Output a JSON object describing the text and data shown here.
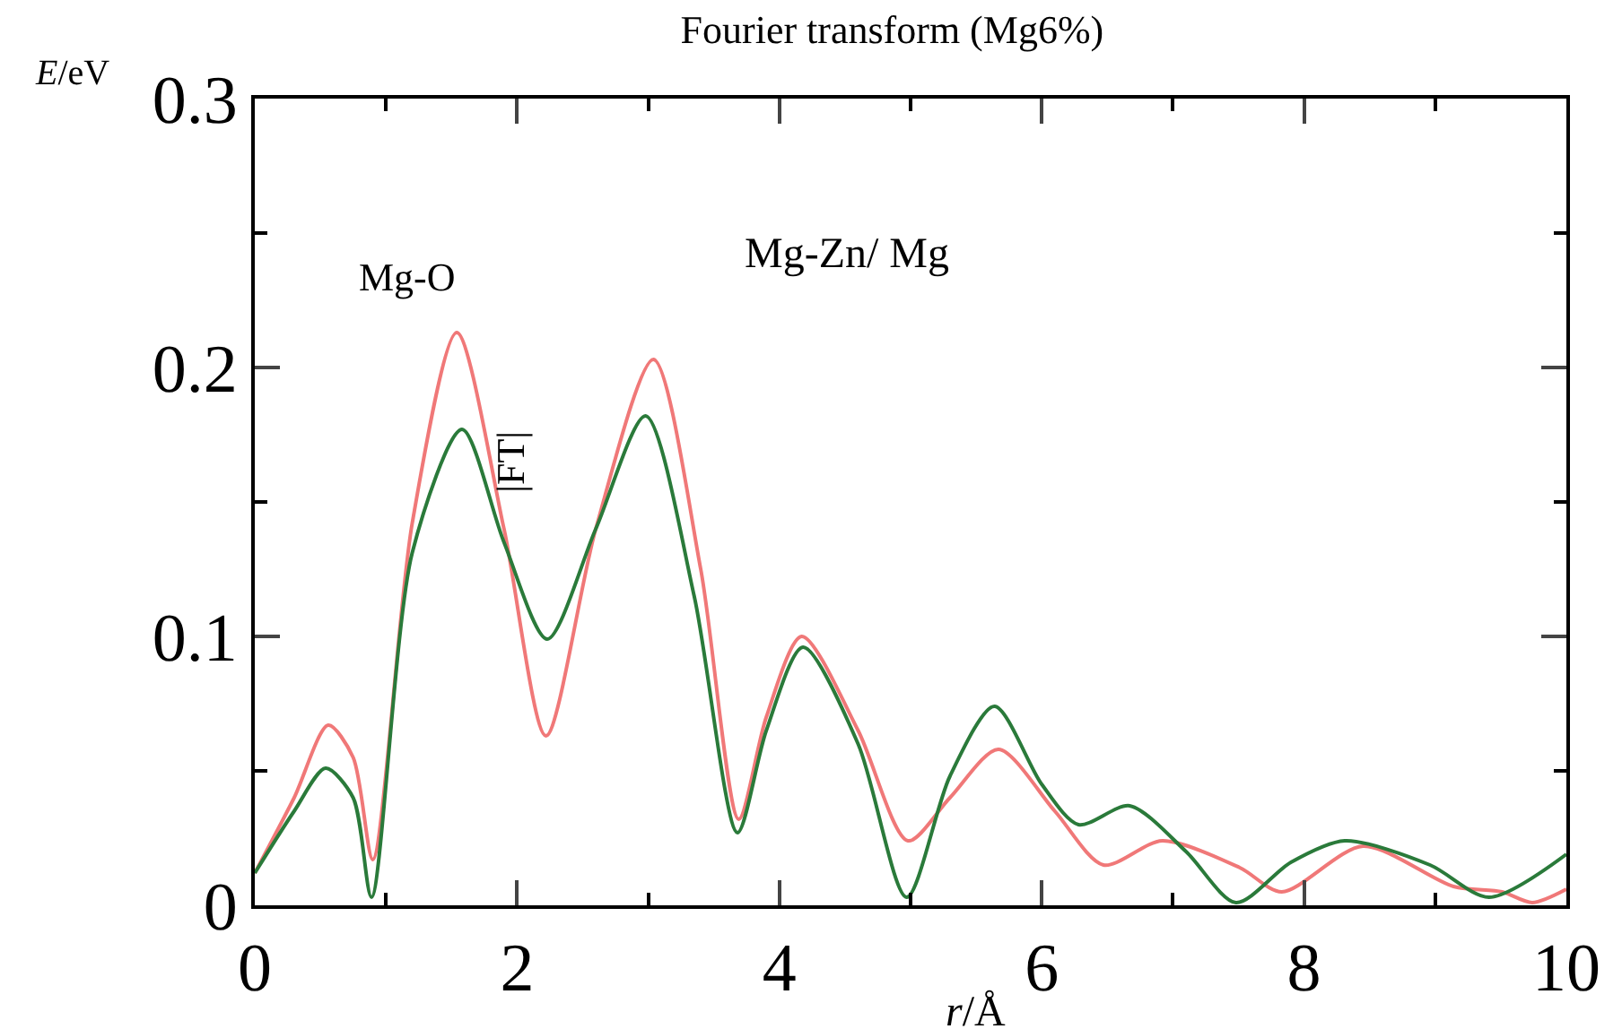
{
  "chart_data": {
    "type": "line",
    "title": "Fourier transform (Mg6%)",
    "xlabel": "r/Å",
    "ylabel": "|FT|",
    "annotations": [
      "E/eV",
      "Mg-O",
      "Mg-Zn/ Mg"
    ],
    "series": [
      {
        "color": "#f07878",
        "x": [
          0,
          0.3,
          0.56,
          0.75,
          0.9,
          1.2,
          1.54,
          1.9,
          2.22,
          2.6,
          3.04,
          3.4,
          3.69,
          3.9,
          4.17,
          4.6,
          4.98,
          5.3,
          5.67,
          6.1,
          6.47,
          6.92,
          7.51,
          7.83,
          8.45,
          9.14,
          9.51,
          9.74,
          10
        ],
        "values": [
          0.012,
          0.04,
          0.067,
          0.055,
          0.017,
          0.142,
          0.213,
          0.14,
          0.063,
          0.14,
          0.203,
          0.125,
          0.032,
          0.07,
          0.1,
          0.065,
          0.024,
          0.04,
          0.058,
          0.035,
          0.015,
          0.024,
          0.014,
          0.005,
          0.022,
          0.007,
          0.005,
          0.001,
          0.006
        ]
      },
      {
        "color": "#2a7a3a",
        "x": [
          0,
          0.3,
          0.54,
          0.75,
          0.89,
          1.2,
          1.58,
          1.9,
          2.23,
          2.6,
          2.98,
          3.35,
          3.68,
          3.9,
          4.18,
          4.6,
          4.97,
          5.3,
          5.64,
          6.0,
          6.28,
          6.67,
          7.1,
          7.48,
          7.9,
          8.31,
          8.96,
          9.41,
          10
        ],
        "values": [
          0.012,
          0.035,
          0.051,
          0.04,
          0.003,
          0.131,
          0.177,
          0.135,
          0.099,
          0.14,
          0.182,
          0.115,
          0.027,
          0.065,
          0.096,
          0.06,
          0.003,
          0.048,
          0.074,
          0.045,
          0.03,
          0.037,
          0.02,
          0.001,
          0.016,
          0.024,
          0.015,
          0.003,
          0.019
        ]
      }
    ],
    "xlim": [
      0,
      10
    ],
    "ylim": [
      0,
      0.3
    ],
    "xticks": [
      0,
      {
        "value": 1,
        "label": null
      },
      2,
      {
        "value": 3,
        "label": null
      },
      4,
      {
        "value": 5,
        "label": null
      },
      6,
      {
        "value": 7,
        "label": null
      },
      8,
      {
        "value": 9,
        "label": null
      },
      10
    ],
    "yticks": [
      0,
      {
        "value": 0.05,
        "label": null
      },
      0.1,
      {
        "value": 0.15,
        "label": null
      },
      0.2,
      {
        "value": 0.25,
        "label": null
      },
      0.3
    ],
    "marker": "none",
    "line_style": "solid"
  }
}
